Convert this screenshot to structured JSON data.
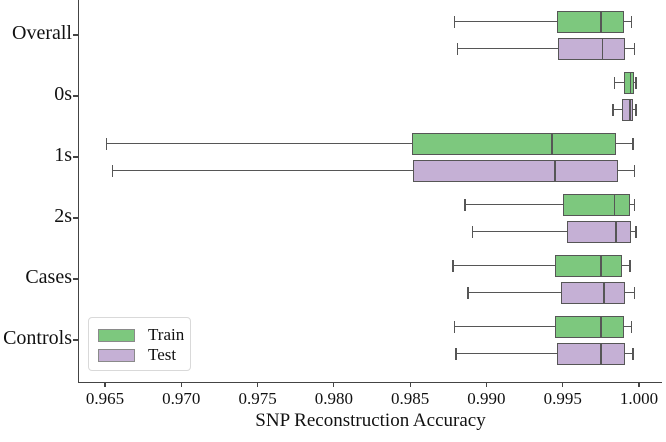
{
  "chart_data": {
    "type": "boxplot",
    "orientation": "horizontal",
    "title": "",
    "xlabel": "SNP Reconstruction Accuracy",
    "ylabel": "",
    "categories": [
      "Overall",
      "0s",
      "1s",
      "2s",
      "Cases",
      "Controls"
    ],
    "x_tick_labels": [
      "0.965",
      "0.970",
      "0.975",
      "0.980",
      "0.985",
      "0.990",
      "0.995",
      "1.000"
    ],
    "xlim": [
      0.9633,
      1.0015
    ],
    "grid": false,
    "legend_position": "lower left",
    "legend": [
      {
        "label": "Train",
        "color": "#7dc87e"
      },
      {
        "label": "Test",
        "color": "#c5b0d5"
      }
    ],
    "edge_color": "#565656",
    "series": [
      {
        "name": "Train",
        "color": "#7dc87e",
        "boxes": [
          {
            "category": "Overall",
            "whislo": 0.9879,
            "q1": 0.9946,
            "med": 0.9975,
            "q3": 0.999,
            "whishi": 0.9995
          },
          {
            "category": "0s",
            "whislo": 0.9984,
            "q1": 0.999,
            "med": 0.99945,
            "q3": 0.99965,
            "whishi": 0.9998
          },
          {
            "category": "1s",
            "whislo": 0.9651,
            "q1": 0.9851,
            "med": 0.9943,
            "q3": 0.9985,
            "whishi": 0.9996
          },
          {
            "category": "2s",
            "whislo": 0.9886,
            "q1": 0.995,
            "med": 0.9984,
            "q3": 0.9994,
            "whishi": 0.9997
          },
          {
            "category": "Cases",
            "whislo": 0.9878,
            "q1": 0.9945,
            "med": 0.9975,
            "q3": 0.9989,
            "whishi": 0.9994
          },
          {
            "category": "Controls",
            "whislo": 0.9879,
            "q1": 0.9945,
            "med": 0.9975,
            "q3": 0.999,
            "whishi": 0.9995
          }
        ]
      },
      {
        "name": "Test",
        "color": "#c5b0d5",
        "boxes": [
          {
            "category": "Overall",
            "whislo": 0.9881,
            "q1": 0.9947,
            "med": 0.9976,
            "q3": 0.9991,
            "whishi": 0.9997
          },
          {
            "category": "0s",
            "whislo": 0.9983,
            "q1": 0.9989,
            "med": 0.9994,
            "q3": 0.9996,
            "whishi": 0.9998
          },
          {
            "category": "1s",
            "whislo": 0.9655,
            "q1": 0.9852,
            "med": 0.9945,
            "q3": 0.9986,
            "whishi": 0.9997
          },
          {
            "category": "2s",
            "whislo": 0.9891,
            "q1": 0.9953,
            "med": 0.9985,
            "q3": 0.9995,
            "whishi": 0.9998
          },
          {
            "category": "Cases",
            "whislo": 0.9888,
            "q1": 0.9949,
            "med": 0.9977,
            "q3": 0.9991,
            "whishi": 0.9997
          },
          {
            "category": "Controls",
            "whislo": 0.988,
            "q1": 0.9946,
            "med": 0.9975,
            "q3": 0.9991,
            "whishi": 0.9996
          }
        ]
      }
    ]
  }
}
